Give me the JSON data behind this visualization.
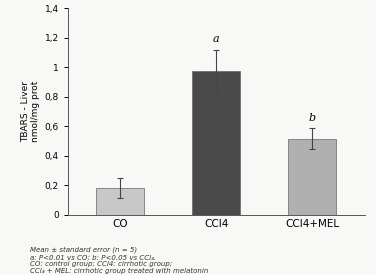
{
  "categories": [
    "CO",
    "CCl4",
    "CCl4+MEL"
  ],
  "values": [
    0.18,
    0.975,
    0.515
  ],
  "errors": [
    0.07,
    0.145,
    0.07
  ],
  "bar_colors": [
    "#c8c8c8",
    "#4a4a4a",
    "#b0b0b0"
  ],
  "bar_width": 0.5,
  "ylabel_line1": "TBARS - Liver",
  "ylabel_line2": "nmol/mg prot",
  "ylim": [
    0,
    1.4
  ],
  "yticks": [
    0,
    0.2,
    0.4,
    0.6,
    0.8,
    1.0,
    1.2,
    1.4
  ],
  "ytick_labels": [
    "0",
    "0,2",
    "0,4",
    "0,6",
    "0,8",
    "1",
    "1,2",
    "1,4"
  ],
  "significance": [
    "",
    "a",
    "b"
  ],
  "footnote_lines": [
    "Mean ± standard error (n = 5)",
    "a: P<0.01 vs CO; b: P<0.05 vs CCl₄.",
    "CO: control group; CCl4: cirrhotic group;",
    "CCl₄ + MEL: cirrhotic group treated with melatonin"
  ],
  "background_color": "#f8f8f6",
  "errorbar_color": "#444444",
  "sig_fontsize": 8,
  "axis_fontsize": 6.5,
  "tick_fontsize": 6.5,
  "footnote_fontsize": 5.0,
  "xlim": [
    -0.55,
    2.55
  ]
}
